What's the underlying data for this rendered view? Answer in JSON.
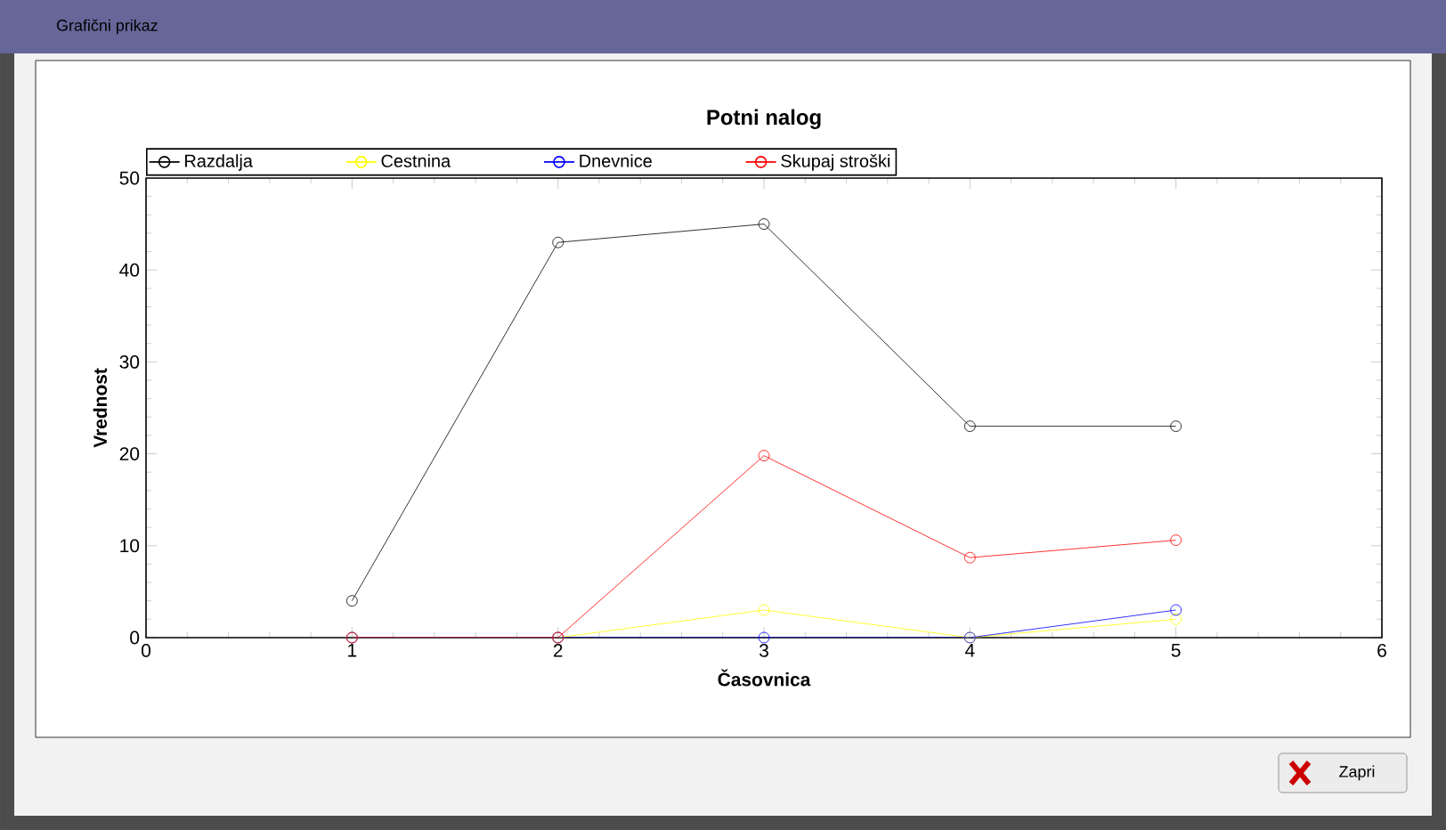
{
  "chart_data": {
    "type": "line",
    "title": "Potni nalog",
    "xlabel": "Časovnica",
    "ylabel": "Vrednost",
    "x": [
      1,
      2,
      3,
      4,
      5
    ],
    "series": [
      {
        "name": "Razdalja",
        "color": "#000000",
        "values": [
          4,
          43,
          45,
          23,
          23
        ]
      },
      {
        "name": "Cestnina",
        "color": "#ffff00",
        "values": [
          0,
          0,
          3,
          0,
          2
        ]
      },
      {
        "name": "Dnevnice",
        "color": "#0000ff",
        "values": [
          0,
          0,
          0,
          0,
          3
        ]
      },
      {
        "name": "Skupaj stroški",
        "color": "#ff0000",
        "values": [
          0,
          0,
          19.8,
          8.7,
          10.6
        ]
      }
    ],
    "xlim": [
      0,
      6
    ],
    "xticks": [
      0,
      1,
      2,
      3,
      4,
      5,
      6
    ],
    "ylim": [
      0,
      50
    ],
    "yticks": [
      0,
      10,
      20,
      30,
      40,
      50
    ],
    "grid": false,
    "legend": "top",
    "marker": "circle",
    "line_style": "solid",
    "annotations": [
      "Grafični prikaz",
      "Zapri"
    ]
  }
}
